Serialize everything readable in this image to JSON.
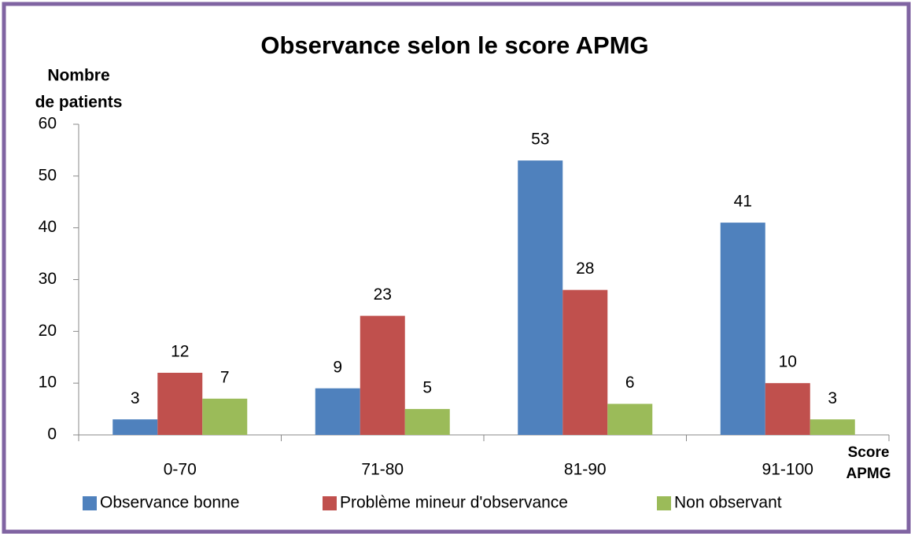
{
  "chart_data": {
    "type": "bar",
    "title": "Observance selon le score APMG",
    "y_label": [
      "Nombre",
      "de patients"
    ],
    "x_label": [
      "Score",
      "APMG"
    ],
    "categories": [
      "0-70",
      "71-80",
      "81-90",
      "91-100"
    ],
    "series": [
      {
        "name": "Observance bonne",
        "color": "#4f81bd",
        "values": [
          3,
          9,
          53,
          41
        ]
      },
      {
        "name": "Problème mineur d'observance",
        "color": "#c0504d",
        "values": [
          12,
          23,
          28,
          10
        ]
      },
      {
        "name": "Non observant",
        "color": "#9bbb59",
        "values": [
          7,
          5,
          6,
          3
        ]
      }
    ],
    "ylim": [
      0,
      60
    ],
    "yticks": [
      0,
      10,
      20,
      30,
      40,
      50,
      60
    ],
    "legend": "bottom"
  }
}
